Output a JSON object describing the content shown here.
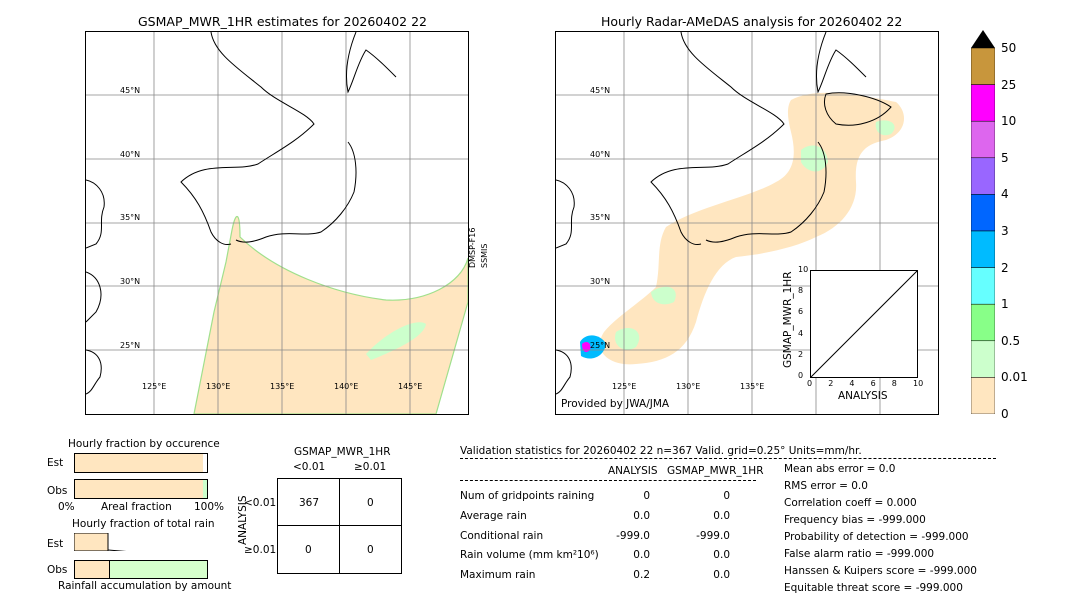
{
  "left_map": {
    "title": "GSMAP_MWR_1HR estimates for 20260402 22",
    "sensor_label_1": "DMSP-F16",
    "sensor_label_2": "SSMIS",
    "lat_labels": [
      "45°N",
      "40°N",
      "35°N",
      "30°N",
      "25°N"
    ],
    "lon_labels": [
      "125°E",
      "130°E",
      "135°E",
      "140°E",
      "145°E"
    ]
  },
  "right_map": {
    "title": "Hourly Radar-AMeDAS analysis for 20260402 22",
    "credit": "Provided by JWA/JMA",
    "lat_labels": [
      "45°N",
      "40°N",
      "35°N",
      "30°N",
      "25°N"
    ],
    "lon_labels": [
      "125°E",
      "130°E",
      "135°E"
    ]
  },
  "colorbar": {
    "labels": [
      "50",
      "25",
      "10",
      "5",
      "4",
      "3",
      "2",
      "1",
      "0.5",
      "0.01",
      "0"
    ],
    "colors": [
      "#c8963c",
      "#ff00ff",
      "#dd66ee",
      "#9966ff",
      "#0066ff",
      "#00bbff",
      "#66ffff",
      "#88ff88",
      "#ccffcc",
      "#ffe6c0"
    ],
    "over_color": "#000000"
  },
  "chart_data": [
    {
      "type": "scatter",
      "name": "inset",
      "xlabel": "ANALYSIS",
      "ylabel": "GSMAP_MWR_1HR",
      "xlim": [
        0,
        10
      ],
      "ylim": [
        0,
        10
      ],
      "xticks": [
        "0",
        "2",
        "4",
        "6",
        "8",
        "10"
      ],
      "yticks": [
        "0",
        "2",
        "4",
        "6",
        "8",
        "10"
      ],
      "x": [],
      "y": []
    },
    {
      "type": "bar",
      "name": "occurrence",
      "title": "Hourly fraction by occurence",
      "categories": [
        "Est",
        "Obs"
      ],
      "values": [
        0.97,
        0.97
      ],
      "xlabel": "Areal fraction",
      "tick_left": "0%",
      "tick_right": "100%"
    },
    {
      "type": "bar",
      "name": "total",
      "title": "Hourly fraction of total rain",
      "categories": [
        "Est",
        "Obs"
      ],
      "values": [
        0.25,
        1.0
      ],
      "xlabel": "Rainfall accumulation by amount"
    }
  ],
  "contingency": {
    "title": "GSMAP_MWR_1HR",
    "col_labels": [
      "<0.01",
      "≥0.01"
    ],
    "row_labels": [
      "<0.01",
      "≥0.01"
    ],
    "row_axis": "ANALYSIS",
    "cells": [
      [
        "367",
        "0"
      ],
      [
        "0",
        "0"
      ]
    ]
  },
  "validation": {
    "header": "Validation statistics for 20260402 22  n=367 Valid. grid=0.25° Units=mm/hr.",
    "col_analysis": "ANALYSIS",
    "col_gsmap": "GSMAP_MWR_1HR",
    "rows": [
      {
        "label": "Num of gridpoints raining",
        "analysis": "0",
        "gsmap": "0"
      },
      {
        "label": "Average rain",
        "analysis": "0.0",
        "gsmap": "0.0"
      },
      {
        "label": "Conditional rain",
        "analysis": "-999.0",
        "gsmap": "-999.0"
      },
      {
        "label": "Rain volume (mm km²10⁶)",
        "analysis": "0.0",
        "gsmap": "0.0"
      },
      {
        "label": "Maximum rain",
        "analysis": "0.2",
        "gsmap": "0.0"
      }
    ],
    "scores": [
      "Mean abs error =    0.0",
      "RMS error =    0.0",
      "Correlation coeff =  0.000",
      "Frequency bias = -999.000",
      "Probability of detection = -999.000",
      "False alarm ratio = -999.000",
      "Hanssen & Kuipers score = -999.000",
      "Equitable threat score = -999.000"
    ]
  }
}
